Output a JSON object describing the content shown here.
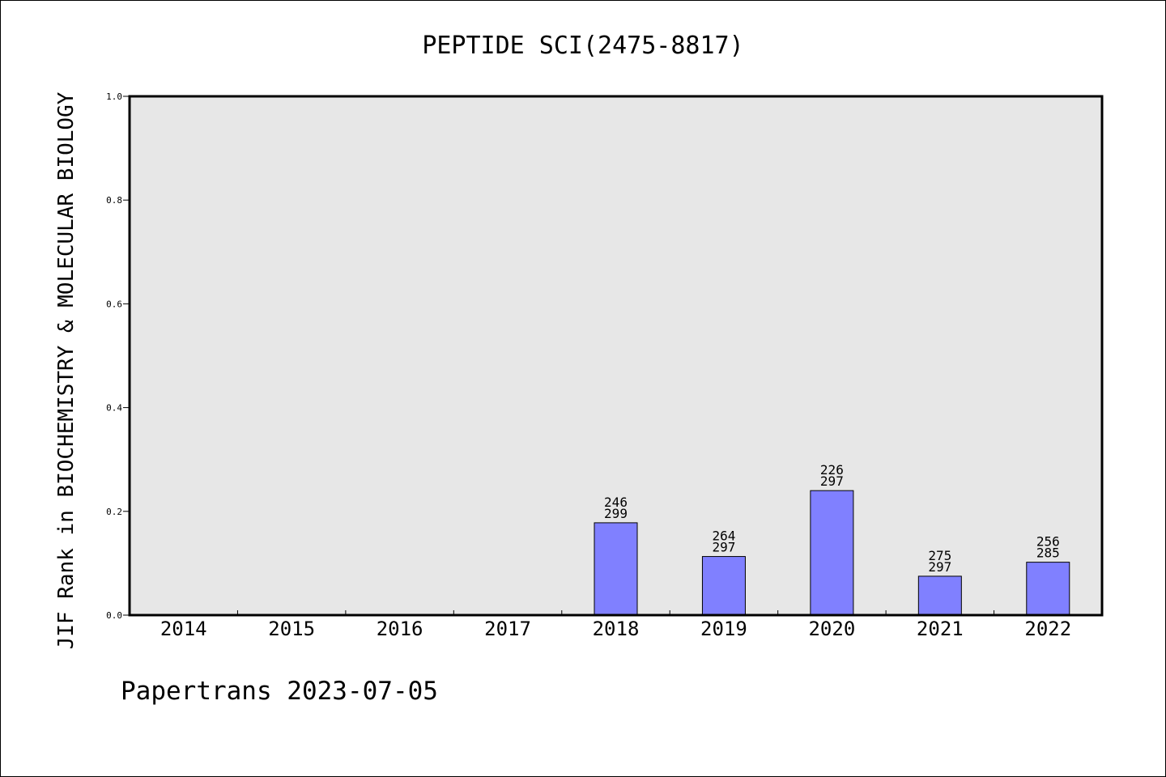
{
  "chart_data": {
    "type": "bar",
    "title": "PEPTIDE SCI(2475-8817)",
    "ylabel": "JIF Rank in BIOCHEMISTRY & MOLECULAR BIOLOGY",
    "xlabel": "",
    "ylim": [
      0,
      1.0
    ],
    "yticks": [
      "0.0",
      "0.2",
      "0.4",
      "0.6",
      "0.8",
      "1.0"
    ],
    "categories": [
      "2014",
      "2015",
      "2016",
      "2017",
      "2018",
      "2019",
      "2020",
      "2021",
      "2022"
    ],
    "values": [
      null,
      null,
      null,
      null,
      0.178,
      0.113,
      0.24,
      0.075,
      0.102
    ],
    "labels": [
      null,
      null,
      null,
      null,
      {
        "rank": "246",
        "total": "299"
      },
      {
        "rank": "264",
        "total": "297"
      },
      {
        "rank": "226",
        "total": "297"
      },
      {
        "rank": "275",
        "total": "297"
      },
      {
        "rank": "256",
        "total": "285"
      }
    ],
    "grid": false,
    "colors": {
      "bar": "#8080ff",
      "plot_bg": "#e7e7e7"
    }
  },
  "footer": "Papertrans 2023-07-05"
}
